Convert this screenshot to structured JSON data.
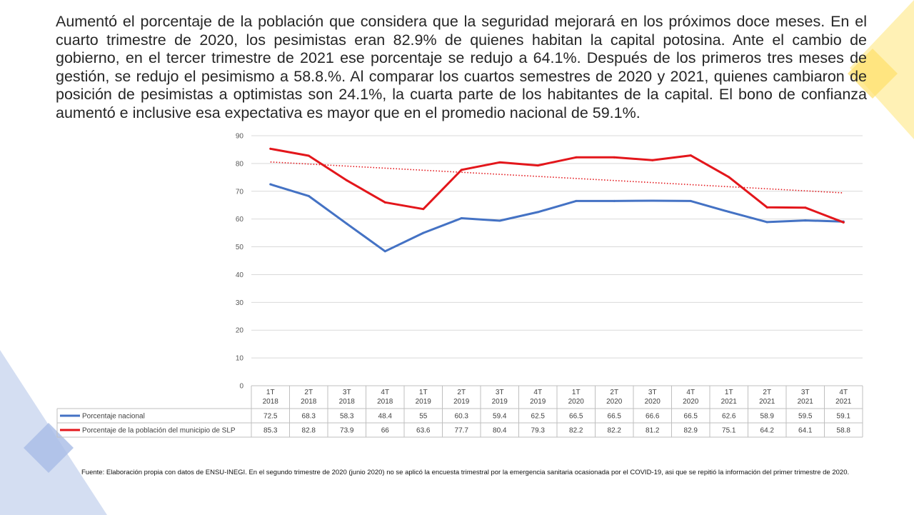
{
  "text": {
    "paragraph": "Aumentó el porcentaje de la población que considera que la seguridad mejorará en los próximos doce meses. En el cuarto trimestre de 2020, los pesimistas eran 82.9% de quienes habitan la capital potosina. Ante el cambio de gobierno, en el tercer trimestre de 2021 ese porcentaje se redujo a 64.1%. Después de los primeros tres meses de gestión, se redujo el pesimismo a 58.8.%. Al comparar los cuartos semestres de 2020 y 2021, quienes cambiaron de posición de pesimistas a optimistas son 24.1%, la cuarta parte de los habitantes de la capital. El bono de confianza aumentó e inclusive esa expectativa es mayor que en el promedio nacional de 59.1%.",
    "source": "Fuente: Elaboración propia con datos de ENSU-INEGI. En el segundo trimestre de 2020 (junio 2020) no se aplicó la encuesta trimestral por la emergencia sanitaria ocasionada por el COVID-19, asi que se repitió la información del primer trimestre de 2020."
  },
  "colors": {
    "nacional": "#4472C4",
    "slp": "#E3161B",
    "trend": "#E3161B",
    "grid": "#D9D9D9",
    "deco_yellow": "#FFE78A",
    "deco_blue": "#B4C7E7"
  },
  "chart_data": {
    "type": "line",
    "title": "",
    "xlabel": "",
    "ylabel": "",
    "ylim": [
      0,
      90
    ],
    "yticks": [
      0,
      10,
      20,
      30,
      40,
      50,
      60,
      70,
      80,
      90
    ],
    "grid": true,
    "legend": "data-table",
    "categories": [
      [
        "1T",
        "2018"
      ],
      [
        "2T",
        "2018"
      ],
      [
        "3T",
        "2018"
      ],
      [
        "4T",
        "2018"
      ],
      [
        "1T",
        "2019"
      ],
      [
        "2T",
        "2019"
      ],
      [
        "3T",
        "2019"
      ],
      [
        "4T",
        "2019"
      ],
      [
        "1T",
        "2020"
      ],
      [
        "2T",
        "2020"
      ],
      [
        "3T",
        "2020"
      ],
      [
        "4T",
        "2020"
      ],
      [
        "1T",
        "2021"
      ],
      [
        "2T",
        "2021"
      ],
      [
        "3T",
        "2021"
      ],
      [
        "4T",
        "2021"
      ]
    ],
    "series": [
      {
        "name": "Porcentaje nacional",
        "color": "#4472C4",
        "values": [
          72.5,
          68.3,
          58.3,
          48.4,
          55,
          60.3,
          59.4,
          62.5,
          66.5,
          66.5,
          66.6,
          66.5,
          62.6,
          58.9,
          59.5,
          59.1
        ]
      },
      {
        "name": "Porcentaje de la población del municipio de SLP",
        "color": "#E3161B",
        "values": [
          85.3,
          82.8,
          73.9,
          66,
          63.6,
          77.7,
          80.4,
          79.3,
          82.2,
          82.2,
          81.2,
          82.9,
          75.1,
          64.2,
          64.1,
          58.8
        ]
      }
    ],
    "trendline": {
      "series": 1,
      "style": "dotted",
      "type": "linear"
    }
  }
}
